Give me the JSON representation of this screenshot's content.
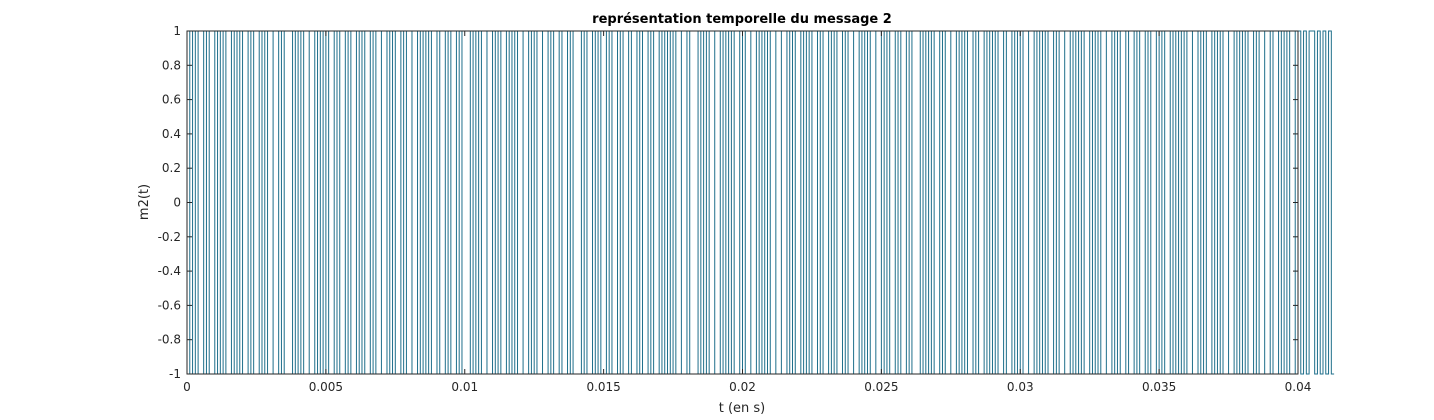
{
  "chart_data": {
    "type": "line",
    "title": "représentation temporelle du message 2",
    "xlabel": "t (en s)",
    "ylabel": "m2(t)",
    "xlim": [
      0,
      0.04
    ],
    "ylim": [
      -1,
      1
    ],
    "xticks": [
      0,
      0.005,
      0.01,
      0.015,
      0.02,
      0.025,
      0.03,
      0.035,
      0.04
    ],
    "xtick_labels": [
      "0",
      "0.005",
      "0.01",
      "0.015",
      "0.02",
      "0.025",
      "0.03",
      "0.035",
      "0.04"
    ],
    "yticks": [
      -1,
      -0.8,
      -0.6,
      -0.4,
      -0.2,
      0,
      0.2,
      0.4,
      0.6,
      0.8,
      1
    ],
    "ytick_labels": [
      "-1",
      "-0.8",
      "-0.6",
      "-0.4",
      "-0.2",
      "0",
      "0.2",
      "0.4",
      "0.6",
      "0.8",
      "1"
    ],
    "grid": false,
    "line_color": "#1f6f8b",
    "series": [
      {
        "bit_duration": 0.0001,
        "levels": [
          1,
          -1,
          1,
          -1,
          1,
          1,
          -1,
          1,
          -1,
          -1,
          1,
          -1,
          1,
          -1,
          1,
          1,
          -1,
          1,
          -1,
          1,
          -1,
          -1,
          1,
          -1,
          1,
          1,
          -1,
          1,
          -1,
          1,
          1,
          -1,
          -1,
          1,
          -1,
          1,
          1,
          1,
          -1,
          1,
          -1,
          1,
          -1,
          -1,
          1,
          1,
          -1,
          1,
          -1,
          1,
          -1,
          1,
          1,
          -1,
          1,
          -1,
          -1,
          1,
          -1,
          1,
          1,
          -1,
          1,
          -1,
          1,
          1,
          -1,
          1,
          -1,
          -1,
          1,
          1,
          -1,
          1,
          -1,
          1,
          1,
          -1,
          1,
          -1,
          -1,
          1,
          1,
          -1,
          1,
          -1,
          1,
          -1,
          1,
          1,
          -1,
          1,
          1,
          -1,
          1,
          -1,
          -1,
          1,
          -1,
          1,
          1,
          1,
          -1,
          1,
          -1,
          1,
          -1,
          -1,
          1,
          1,
          -1,
          1,
          -1,
          1,
          1,
          -1,
          1,
          -1,
          1,
          -1,
          -1,
          1,
          1,
          -1,
          1,
          -1,
          1,
          1,
          -1,
          -1,
          1,
          -1,
          1,
          1,
          -1,
          1,
          1,
          -1,
          1,
          -1,
          -1,
          -1,
          1,
          -1,
          1,
          1,
          -1,
          1,
          -1,
          1,
          1,
          -1,
          1,
          -1,
          -1,
          1,
          -1,
          1,
          1,
          -1,
          1,
          1,
          -1,
          1,
          -1,
          -1,
          1,
          -1,
          1,
          1,
          -1,
          1,
          -1,
          1,
          -1,
          1,
          -1,
          -1,
          1,
          1,
          -1,
          1,
          1,
          1,
          -1,
          1,
          -1,
          1,
          -1,
          -1,
          1,
          1,
          -1,
          1,
          -1,
          1,
          -1,
          1,
          1,
          -1,
          1,
          -1,
          -1,
          1,
          1,
          -1,
          1,
          -1,
          1,
          -1,
          1,
          1,
          -1,
          -1,
          1,
          1,
          -1,
          1,
          -1,
          1,
          1,
          -1,
          1,
          -1,
          1,
          -1,
          -1,
          1,
          -1,
          1,
          1,
          -1,
          1,
          -1,
          1,
          1,
          -1,
          1,
          -1,
          -1,
          1,
          1,
          -1,
          1,
          -1,
          1,
          -1,
          -1,
          1,
          1,
          -1,
          1,
          -1,
          1,
          1,
          -1,
          1,
          -1,
          -1,
          1,
          -1,
          1,
          1,
          1,
          -1,
          1,
          -1,
          1,
          -1,
          1,
          1,
          -1,
          1,
          -1,
          -1,
          1,
          1,
          -1,
          1,
          -1,
          1,
          -1,
          -1,
          1,
          -1,
          1,
          1,
          -1,
          1,
          -1,
          1,
          -1,
          1,
          1,
          -1,
          1,
          1,
          -1,
          1,
          -1,
          1,
          -1,
          -1,
          1,
          1,
          -1,
          1,
          -1,
          1,
          -1,
          1,
          1,
          -1,
          1,
          -1,
          -1,
          1,
          1,
          -1,
          1,
          -1,
          1,
          -1,
          1,
          1,
          -1,
          1,
          -1,
          1,
          -1,
          -1,
          1,
          1,
          -1,
          1,
          -1,
          1,
          1,
          -1,
          1,
          1,
          -1,
          1,
          -1,
          -1,
          1,
          -1,
          1,
          1,
          -1,
          1,
          -1,
          1,
          1,
          -1,
          1,
          -1,
          1,
          -1,
          1,
          -1,
          -1,
          1,
          1,
          -1,
          1,
          -1,
          1,
          1,
          -1,
          1,
          -1,
          1,
          -1,
          -1,
          1,
          1,
          -1,
          1,
          -1,
          1,
          -1,
          1,
          1,
          -1,
          1,
          -1,
          -1,
          1,
          1,
          -1,
          1,
          1,
          -1,
          1,
          -1,
          1,
          -1,
          -1,
          1,
          1,
          -1,
          1,
          -1,
          1,
          1,
          -1,
          1,
          -1,
          1,
          -1,
          1,
          -1
        ]
      }
    ]
  }
}
